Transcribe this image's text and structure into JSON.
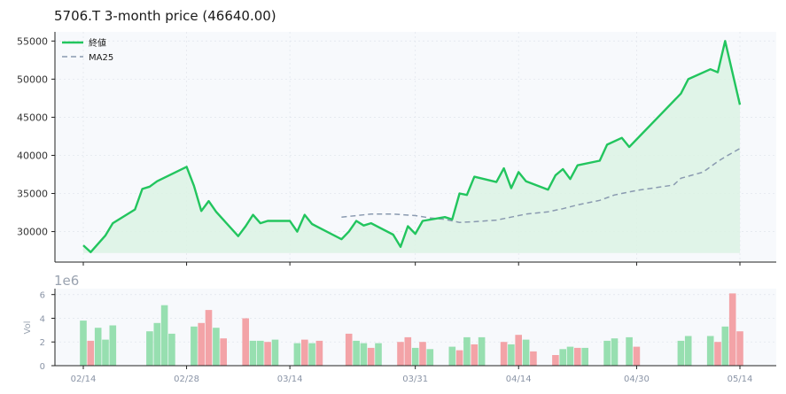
{
  "chart_data": [
    {
      "type": "line",
      "title": "5706.T  3-month price (46640.00)",
      "ylim": [
        26000,
        56200
      ],
      "yticks": [
        30000,
        35000,
        40000,
        45000,
        50000,
        55000
      ],
      "grid": true,
      "legend": {
        "placement": "top-left",
        "entries": [
          "終値",
          "MA25"
        ]
      },
      "colors": {
        "close": "#22c55e",
        "ma": "#8a9ab0",
        "fill": "#dcf3e4",
        "bg": "#f7f9fc"
      },
      "series": [
        {
          "name": "終値",
          "points": [
            [
              "2025-02-14",
              28200
            ],
            [
              "2025-02-15",
              27300
            ],
            [
              "2025-02-17",
              29500
            ],
            [
              "2025-02-18",
              31100
            ],
            [
              "2025-02-21",
              32900
            ],
            [
              "2025-02-22",
              35600
            ],
            [
              "2025-02-23",
              35900
            ],
            [
              "2025-02-24",
              36600
            ],
            [
              "2025-02-28",
              38500
            ],
            [
              "2025-03-01",
              36000
            ],
            [
              "2025-03-02",
              32700
            ],
            [
              "2025-03-03",
              34000
            ],
            [
              "2025-03-04",
              32600
            ],
            [
              "2025-03-07",
              29400
            ],
            [
              "2025-03-08",
              30700
            ],
            [
              "2025-03-09",
              32200
            ],
            [
              "2025-03-10",
              31100
            ],
            [
              "2025-03-11",
              31400
            ],
            [
              "2025-03-14",
              31400
            ],
            [
              "2025-03-15",
              30000
            ],
            [
              "2025-03-16",
              32200
            ],
            [
              "2025-03-17",
              31000
            ],
            [
              "2025-03-21",
              29000
            ],
            [
              "2025-03-22",
              30000
            ],
            [
              "2025-03-23",
              31400
            ],
            [
              "2025-03-24",
              30800
            ],
            [
              "2025-03-25",
              31100
            ],
            [
              "2025-03-28",
              29600
            ],
            [
              "2025-03-29",
              28000
            ],
            [
              "2025-03-30",
              30700
            ],
            [
              "2025-03-31",
              29700
            ],
            [
              "2025-04-01",
              31400
            ],
            [
              "2025-04-04",
              31900
            ],
            [
              "2025-04-05",
              31600
            ],
            [
              "2025-04-06",
              35000
            ],
            [
              "2025-04-07",
              34800
            ],
            [
              "2025-04-08",
              37200
            ],
            [
              "2025-04-11",
              36500
            ],
            [
              "2025-04-12",
              38300
            ],
            [
              "2025-04-13",
              35700
            ],
            [
              "2025-04-14",
              37800
            ],
            [
              "2025-04-15",
              36600
            ],
            [
              "2025-04-18",
              35500
            ],
            [
              "2025-04-19",
              37400
            ],
            [
              "2025-04-20",
              38200
            ],
            [
              "2025-04-21",
              36900
            ],
            [
              "2025-04-22",
              38700
            ],
            [
              "2025-04-25",
              39300
            ],
            [
              "2025-04-26",
              41400
            ],
            [
              "2025-04-28",
              42300
            ],
            [
              "2025-04-29",
              41100
            ],
            [
              "2025-05-06",
              48100
            ],
            [
              "2025-05-07",
              50000
            ],
            [
              "2025-05-10",
              51300
            ],
            [
              "2025-05-11",
              50900
            ],
            [
              "2025-05-12",
              55000
            ],
            [
              "2025-05-14",
              46640
            ]
          ]
        },
        {
          "name": "MA25",
          "points": [
            [
              "2025-03-21",
              31900
            ],
            [
              "2025-03-23",
              32100
            ],
            [
              "2025-03-25",
              32300
            ],
            [
              "2025-03-28",
              32300
            ],
            [
              "2025-03-31",
              32100
            ],
            [
              "2025-04-02",
              31800
            ],
            [
              "2025-04-04",
              31600
            ],
            [
              "2025-04-06",
              31200
            ],
            [
              "2025-04-08",
              31300
            ],
            [
              "2025-04-11",
              31500
            ],
            [
              "2025-04-13",
              31900
            ],
            [
              "2025-04-15",
              32300
            ],
            [
              "2025-04-18",
              32600
            ],
            [
              "2025-04-20",
              33000
            ],
            [
              "2025-04-22",
              33500
            ],
            [
              "2025-04-25",
              34100
            ],
            [
              "2025-04-27",
              34800
            ],
            [
              "2025-04-29",
              35200
            ],
            [
              "2025-04-30",
              35400
            ],
            [
              "2025-05-05",
              36100
            ],
            [
              "2025-05-06",
              37000
            ],
            [
              "2025-05-09",
              37800
            ],
            [
              "2025-05-11",
              39200
            ],
            [
              "2025-05-12",
              39800
            ],
            [
              "2025-05-14",
              40900
            ]
          ]
        }
      ]
    },
    {
      "type": "bar",
      "ylabel": "Vol",
      "scale_label": "1e6",
      "ylim": [
        0,
        6.5
      ],
      "yticks": [
        0,
        2,
        4,
        6
      ],
      "colors": {
        "up": "#97dfb0",
        "down": "#f3a3a7"
      },
      "xticks": [
        "02/14",
        "02/28",
        "03/14",
        "03/31",
        "04/14",
        "04/30",
        "05/14"
      ],
      "xtick_dates": [
        "2025-02-14",
        "2025-02-28",
        "2025-03-14",
        "2025-03-31",
        "2025-04-14",
        "2025-04-30",
        "2025-05-14"
      ],
      "bars": [
        [
          "2025-02-14",
          3.8,
          "up"
        ],
        [
          "2025-02-15",
          2.1,
          "down"
        ],
        [
          "2025-02-16",
          3.2,
          "up"
        ],
        [
          "2025-02-17",
          2.2,
          "up"
        ],
        [
          "2025-02-18",
          3.4,
          "up"
        ],
        [
          "2025-02-23",
          2.9,
          "up"
        ],
        [
          "2025-02-24",
          3.6,
          "up"
        ],
        [
          "2025-02-25",
          5.1,
          "up"
        ],
        [
          "2025-02-26",
          2.7,
          "up"
        ],
        [
          "2025-03-01",
          3.3,
          "up"
        ],
        [
          "2025-03-02",
          3.6,
          "down"
        ],
        [
          "2025-03-03",
          4.7,
          "down"
        ],
        [
          "2025-03-04",
          3.2,
          "up"
        ],
        [
          "2025-03-05",
          2.3,
          "down"
        ],
        [
          "2025-03-08",
          4.0,
          "down"
        ],
        [
          "2025-03-09",
          2.1,
          "up"
        ],
        [
          "2025-03-10",
          2.1,
          "up"
        ],
        [
          "2025-03-11",
          2.0,
          "down"
        ],
        [
          "2025-03-12",
          2.2,
          "up"
        ],
        [
          "2025-03-15",
          1.9,
          "up"
        ],
        [
          "2025-03-16",
          2.2,
          "down"
        ],
        [
          "2025-03-17",
          1.9,
          "up"
        ],
        [
          "2025-03-18",
          2.1,
          "down"
        ],
        [
          "2025-03-22",
          2.7,
          "down"
        ],
        [
          "2025-03-23",
          2.1,
          "up"
        ],
        [
          "2025-03-24",
          1.9,
          "up"
        ],
        [
          "2025-03-25",
          1.5,
          "down"
        ],
        [
          "2025-03-26",
          1.9,
          "up"
        ],
        [
          "2025-03-29",
          2.0,
          "down"
        ],
        [
          "2025-03-30",
          2.4,
          "down"
        ],
        [
          "2025-03-31",
          1.5,
          "up"
        ],
        [
          "2025-04-01",
          2.0,
          "down"
        ],
        [
          "2025-04-02",
          1.4,
          "up"
        ],
        [
          "2025-04-05",
          1.6,
          "up"
        ],
        [
          "2025-04-06",
          1.3,
          "down"
        ],
        [
          "2025-04-07",
          2.4,
          "up"
        ],
        [
          "2025-04-08",
          1.8,
          "down"
        ],
        [
          "2025-04-09",
          2.4,
          "up"
        ],
        [
          "2025-04-12",
          2.0,
          "down"
        ],
        [
          "2025-04-13",
          1.8,
          "up"
        ],
        [
          "2025-04-14",
          2.6,
          "down"
        ],
        [
          "2025-04-15",
          2.2,
          "up"
        ],
        [
          "2025-04-16",
          1.2,
          "down"
        ],
        [
          "2025-04-19",
          0.9,
          "down"
        ],
        [
          "2025-04-20",
          1.4,
          "up"
        ],
        [
          "2025-04-21",
          1.6,
          "up"
        ],
        [
          "2025-04-22",
          1.5,
          "down"
        ],
        [
          "2025-04-23",
          1.5,
          "up"
        ],
        [
          "2025-04-26",
          2.1,
          "up"
        ],
        [
          "2025-04-27",
          2.3,
          "up"
        ],
        [
          "2025-04-29",
          2.4,
          "up"
        ],
        [
          "2025-04-30",
          1.6,
          "down"
        ],
        [
          "2025-05-06",
          2.1,
          "up"
        ],
        [
          "2025-05-07",
          2.5,
          "up"
        ],
        [
          "2025-05-10",
          2.5,
          "up"
        ],
        [
          "2025-05-11",
          2.0,
          "down"
        ],
        [
          "2025-05-12",
          3.3,
          "up"
        ],
        [
          "2025-05-13",
          6.1,
          "down"
        ],
        [
          "2025-05-14",
          2.9,
          "down"
        ]
      ]
    }
  ]
}
